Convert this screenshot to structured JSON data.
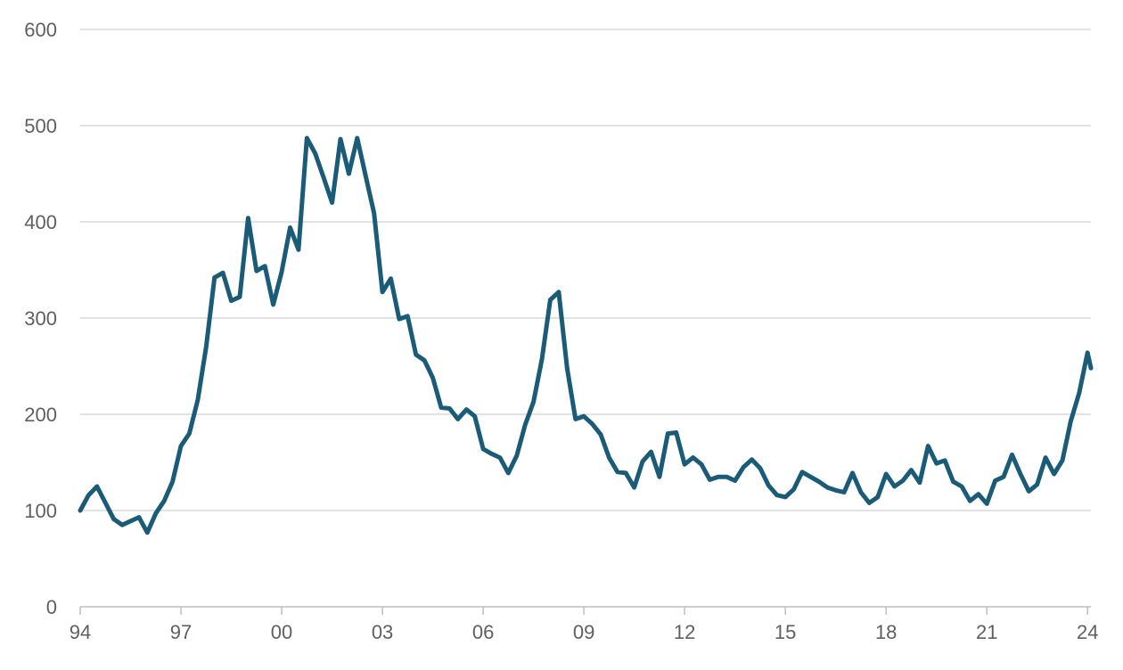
{
  "colors": {
    "series": "#1a5c78",
    "grid": "#d9d9d9",
    "text": "#5f5f5f"
  },
  "chart_data": {
    "type": "line",
    "title": "",
    "xlabel": "",
    "ylabel": "",
    "grid": "horizontal",
    "ylim": [
      0,
      600
    ],
    "xlim": [
      1994,
      2024.1
    ],
    "y_ticks": [
      0,
      100,
      200,
      300,
      400,
      500,
      600
    ],
    "y_tick_labels": [
      "0",
      "100",
      "200",
      "300",
      "400",
      "500",
      "600"
    ],
    "x_ticks": [
      1994,
      1997,
      2000,
      2003,
      2006,
      2009,
      2012,
      2015,
      2018,
      2021,
      2024
    ],
    "x_tick_labels": [
      "94",
      "97",
      "00",
      "03",
      "06",
      "09",
      "12",
      "15",
      "18",
      "21",
      "24"
    ],
    "series": [
      {
        "values": [
          {
            "x": 1994.0,
            "y": 100
          },
          {
            "x": 1994.25,
            "y": 116
          },
          {
            "x": 1994.5,
            "y": 125
          },
          {
            "x": 1994.75,
            "y": 108
          },
          {
            "x": 1995.0,
            "y": 91
          },
          {
            "x": 1995.25,
            "y": 85
          },
          {
            "x": 1995.5,
            "y": 89
          },
          {
            "x": 1995.75,
            "y": 93
          },
          {
            "x": 1996.0,
            "y": 77
          },
          {
            "x": 1996.25,
            "y": 97
          },
          {
            "x": 1996.5,
            "y": 110
          },
          {
            "x": 1996.75,
            "y": 130
          },
          {
            "x": 1997.0,
            "y": 167
          },
          {
            "x": 1997.25,
            "y": 180
          },
          {
            "x": 1997.5,
            "y": 215
          },
          {
            "x": 1997.75,
            "y": 270
          },
          {
            "x": 1998.0,
            "y": 342
          },
          {
            "x": 1998.25,
            "y": 347
          },
          {
            "x": 1998.5,
            "y": 318
          },
          {
            "x": 1998.75,
            "y": 322
          },
          {
            "x": 1999.0,
            "y": 404
          },
          {
            "x": 1999.25,
            "y": 349
          },
          {
            "x": 1999.5,
            "y": 354
          },
          {
            "x": 1999.75,
            "y": 314
          },
          {
            "x": 2000.0,
            "y": 348
          },
          {
            "x": 2000.25,
            "y": 394
          },
          {
            "x": 2000.5,
            "y": 371
          },
          {
            "x": 2000.75,
            "y": 487
          },
          {
            "x": 2001.0,
            "y": 471
          },
          {
            "x": 2001.25,
            "y": 446
          },
          {
            "x": 2001.5,
            "y": 420
          },
          {
            "x": 2001.75,
            "y": 486
          },
          {
            "x": 2002.0,
            "y": 450
          },
          {
            "x": 2002.25,
            "y": 487
          },
          {
            "x": 2002.5,
            "y": 448
          },
          {
            "x": 2002.75,
            "y": 409
          },
          {
            "x": 2003.0,
            "y": 327
          },
          {
            "x": 2003.25,
            "y": 341
          },
          {
            "x": 2003.5,
            "y": 299
          },
          {
            "x": 2003.75,
            "y": 302
          },
          {
            "x": 2004.0,
            "y": 262
          },
          {
            "x": 2004.25,
            "y": 256
          },
          {
            "x": 2004.5,
            "y": 238
          },
          {
            "x": 2004.75,
            "y": 207
          },
          {
            "x": 2005.0,
            "y": 206
          },
          {
            "x": 2005.25,
            "y": 195
          },
          {
            "x": 2005.5,
            "y": 205
          },
          {
            "x": 2005.75,
            "y": 198
          },
          {
            "x": 2006.0,
            "y": 164
          },
          {
            "x": 2006.25,
            "y": 159
          },
          {
            "x": 2006.5,
            "y": 155
          },
          {
            "x": 2006.75,
            "y": 139
          },
          {
            "x": 2007.0,
            "y": 157
          },
          {
            "x": 2007.25,
            "y": 189
          },
          {
            "x": 2007.5,
            "y": 213
          },
          {
            "x": 2007.75,
            "y": 257
          },
          {
            "x": 2008.0,
            "y": 319
          },
          {
            "x": 2008.25,
            "y": 327
          },
          {
            "x": 2008.5,
            "y": 248
          },
          {
            "x": 2008.75,
            "y": 195
          },
          {
            "x": 2009.0,
            "y": 198
          },
          {
            "x": 2009.25,
            "y": 190
          },
          {
            "x": 2009.5,
            "y": 179
          },
          {
            "x": 2009.75,
            "y": 155
          },
          {
            "x": 2010.0,
            "y": 140
          },
          {
            "x": 2010.25,
            "y": 139
          },
          {
            "x": 2010.5,
            "y": 124
          },
          {
            "x": 2010.75,
            "y": 151
          },
          {
            "x": 2011.0,
            "y": 161
          },
          {
            "x": 2011.25,
            "y": 135
          },
          {
            "x": 2011.5,
            "y": 180
          },
          {
            "x": 2011.75,
            "y": 181
          },
          {
            "x": 2012.0,
            "y": 148
          },
          {
            "x": 2012.25,
            "y": 155
          },
          {
            "x": 2012.5,
            "y": 148
          },
          {
            "x": 2012.75,
            "y": 132
          },
          {
            "x": 2013.0,
            "y": 135
          },
          {
            "x": 2013.25,
            "y": 135
          },
          {
            "x": 2013.5,
            "y": 131
          },
          {
            "x": 2013.75,
            "y": 145
          },
          {
            "x": 2014.0,
            "y": 153
          },
          {
            "x": 2014.25,
            "y": 144
          },
          {
            "x": 2014.5,
            "y": 126
          },
          {
            "x": 2014.75,
            "y": 116
          },
          {
            "x": 2015.0,
            "y": 114
          },
          {
            "x": 2015.25,
            "y": 122
          },
          {
            "x": 2015.5,
            "y": 140
          },
          {
            "x": 2015.75,
            "y": 135
          },
          {
            "x": 2016.0,
            "y": 130
          },
          {
            "x": 2016.25,
            "y": 124
          },
          {
            "x": 2016.5,
            "y": 121
          },
          {
            "x": 2016.75,
            "y": 119
          },
          {
            "x": 2017.0,
            "y": 139
          },
          {
            "x": 2017.25,
            "y": 119
          },
          {
            "x": 2017.5,
            "y": 108
          },
          {
            "x": 2017.75,
            "y": 114
          },
          {
            "x": 2018.0,
            "y": 138
          },
          {
            "x": 2018.25,
            "y": 125
          },
          {
            "x": 2018.5,
            "y": 131
          },
          {
            "x": 2018.75,
            "y": 142
          },
          {
            "x": 2019.0,
            "y": 129
          },
          {
            "x": 2019.25,
            "y": 167
          },
          {
            "x": 2019.5,
            "y": 149
          },
          {
            "x": 2019.75,
            "y": 152
          },
          {
            "x": 2020.0,
            "y": 130
          },
          {
            "x": 2020.25,
            "y": 125
          },
          {
            "x": 2020.5,
            "y": 110
          },
          {
            "x": 2020.75,
            "y": 117
          },
          {
            "x": 2021.0,
            "y": 107
          },
          {
            "x": 2021.25,
            "y": 131
          },
          {
            "x": 2021.5,
            "y": 135
          },
          {
            "x": 2021.75,
            "y": 158
          },
          {
            "x": 2022.0,
            "y": 138
          },
          {
            "x": 2022.25,
            "y": 120
          },
          {
            "x": 2022.5,
            "y": 127
          },
          {
            "x": 2022.75,
            "y": 155
          },
          {
            "x": 2023.0,
            "y": 138
          },
          {
            "x": 2023.25,
            "y": 152
          },
          {
            "x": 2023.5,
            "y": 193
          },
          {
            "x": 2023.75,
            "y": 222
          },
          {
            "x": 2024.0,
            "y": 264
          },
          {
            "x": 2024.1,
            "y": 248
          }
        ]
      }
    ]
  }
}
